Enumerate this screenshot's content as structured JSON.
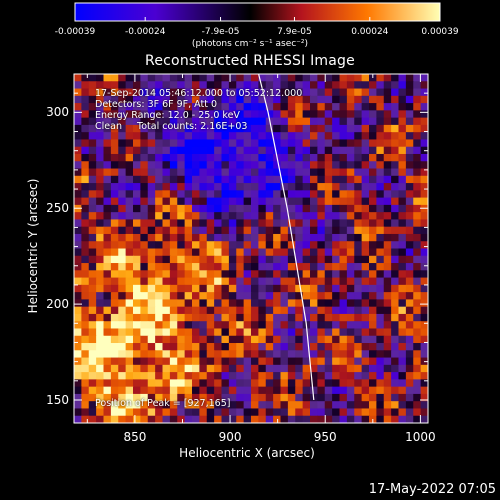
{
  "colorbar": {
    "ticks": [
      "-0.00039",
      "-0.00024",
      "-7.9e-05",
      "7.9e-05",
      "0.00024",
      "0.00039"
    ],
    "tick_values": [
      -0.00039,
      -0.00024,
      -7.9e-05,
      7.9e-05,
      0.00024,
      0.00039
    ],
    "range": [
      -0.00039,
      0.00039
    ],
    "unit_label": "(photons cm⁻² s⁻¹ asec⁻²)",
    "colors": [
      "#0000ff",
      "#5a00c8",
      "#000000",
      "#c81e00",
      "#ff8c00",
      "#ffff96"
    ]
  },
  "chart_data": {
    "type": "heatmap",
    "title": "Reconstructed RHESSI Image",
    "xlabel": "Heliocentric X (arcsec)",
    "ylabel": "Heliocentric Y (arcsec)",
    "xlim": [
      818,
      1004
    ],
    "ylim": [
      138,
      320
    ],
    "xticks": [
      850,
      900,
      950,
      1000
    ],
    "yticks": [
      150,
      200,
      250,
      300
    ],
    "annotations": [
      "17-Sep-2014 05:46:12.000 to 05:52:12.000",
      "Detectors: 3F 6F 9F, Att 0",
      "Energy Range: 12.0 - 25.0 keV",
      "Clean     Total counts: 2.16E+03"
    ],
    "peak_label": "Position of Peak = [927,165]",
    "peak": [
      927,
      165
    ],
    "limb_line": {
      "x": [
        915,
        920,
        930,
        940,
        944
      ],
      "y": [
        320,
        300,
        250,
        190,
        150
      ]
    }
  },
  "footer_timestamp": "17-May-2022 07:05"
}
